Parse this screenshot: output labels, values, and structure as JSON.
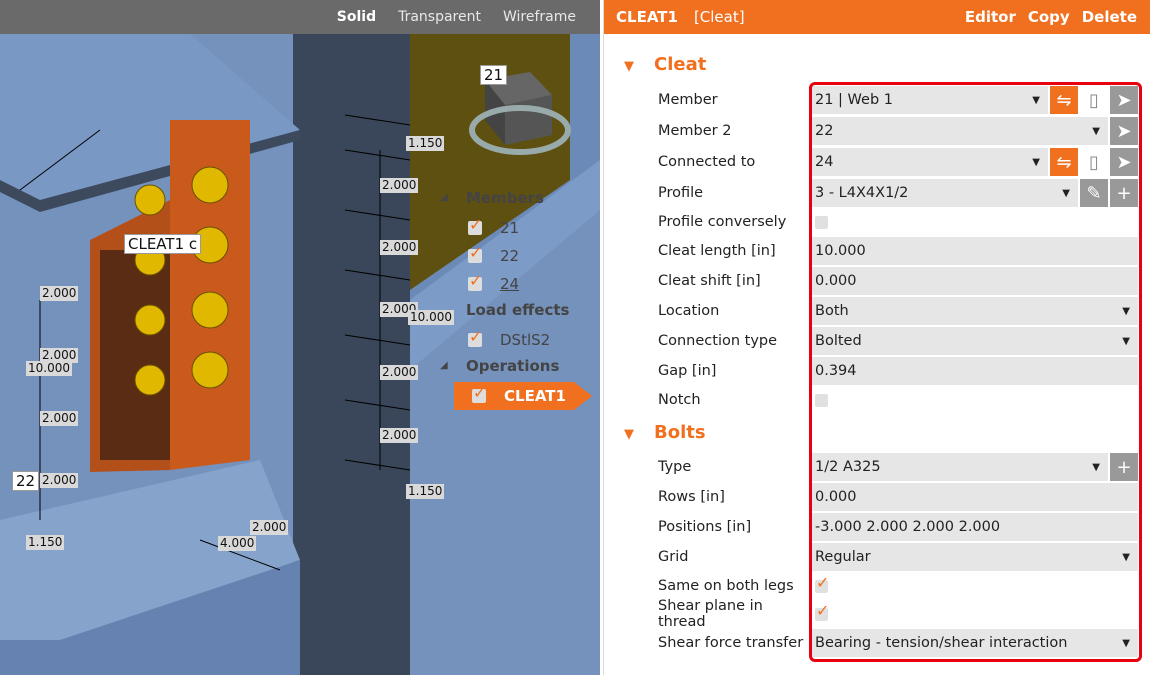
{
  "viewport": {
    "modes": [
      "Solid",
      "Transparent",
      "Wireframe"
    ],
    "active": "Solid",
    "dims": [
      "1.150",
      "2.000",
      "2.000",
      "2.000",
      "2.000",
      "2.000",
      "1.150",
      "10.000",
      "2.000",
      "2.000",
      "10.000",
      "2.000",
      "2.000",
      "1.150",
      "2.000",
      "4.000"
    ],
    "tags": {
      "member21": "21",
      "member22": "22",
      "cleat": "CLEAT1 c"
    }
  },
  "tree": {
    "members_label": "Members",
    "members": [
      "21",
      "22",
      "24"
    ],
    "load_label": "Load effects",
    "loads": [
      "DStlS2"
    ],
    "ops_label": "Operations",
    "ops": [
      "CLEAT1"
    ]
  },
  "panel": {
    "title": "CLEAT1",
    "type": "[Cleat]",
    "actions": [
      "Editor",
      "Copy",
      "Delete"
    ],
    "cleat_section": "Cleat",
    "bolts_section": "Bolts",
    "cleat": [
      {
        "label": "Member",
        "value": "21 | Web 1"
      },
      {
        "label": "Member 2",
        "value": "22"
      },
      {
        "label": "Connected to",
        "value": "24"
      },
      {
        "label": "Profile",
        "value": "3 - L4X4X1/2"
      },
      {
        "label": "Profile conversely",
        "checked": false
      },
      {
        "label": "Cleat length [in]",
        "value": "10.000"
      },
      {
        "label": "Cleat shift [in]",
        "value": "0.000"
      },
      {
        "label": "Location",
        "value": "Both"
      },
      {
        "label": "Connection type",
        "value": "Bolted"
      },
      {
        "label": "Gap [in]",
        "value": "0.394"
      },
      {
        "label": "Notch",
        "checked": false
      }
    ],
    "bolts": [
      {
        "label": "Type",
        "value": "1/2 A325"
      },
      {
        "label": "Rows [in]",
        "value": "0.000"
      },
      {
        "label": "Positions [in]",
        "value": "-3.000 2.000 2.000 2.000"
      },
      {
        "label": "Grid",
        "value": "Regular"
      },
      {
        "label": "Same on both legs",
        "checked": true
      },
      {
        "label": "Shear plane in thread",
        "checked": true
      },
      {
        "label": "Shear force transfer",
        "value": "Bearing - tension/shear interaction"
      }
    ]
  },
  "colors": {
    "accent": "#f07020",
    "highlight": "#e8000f"
  }
}
